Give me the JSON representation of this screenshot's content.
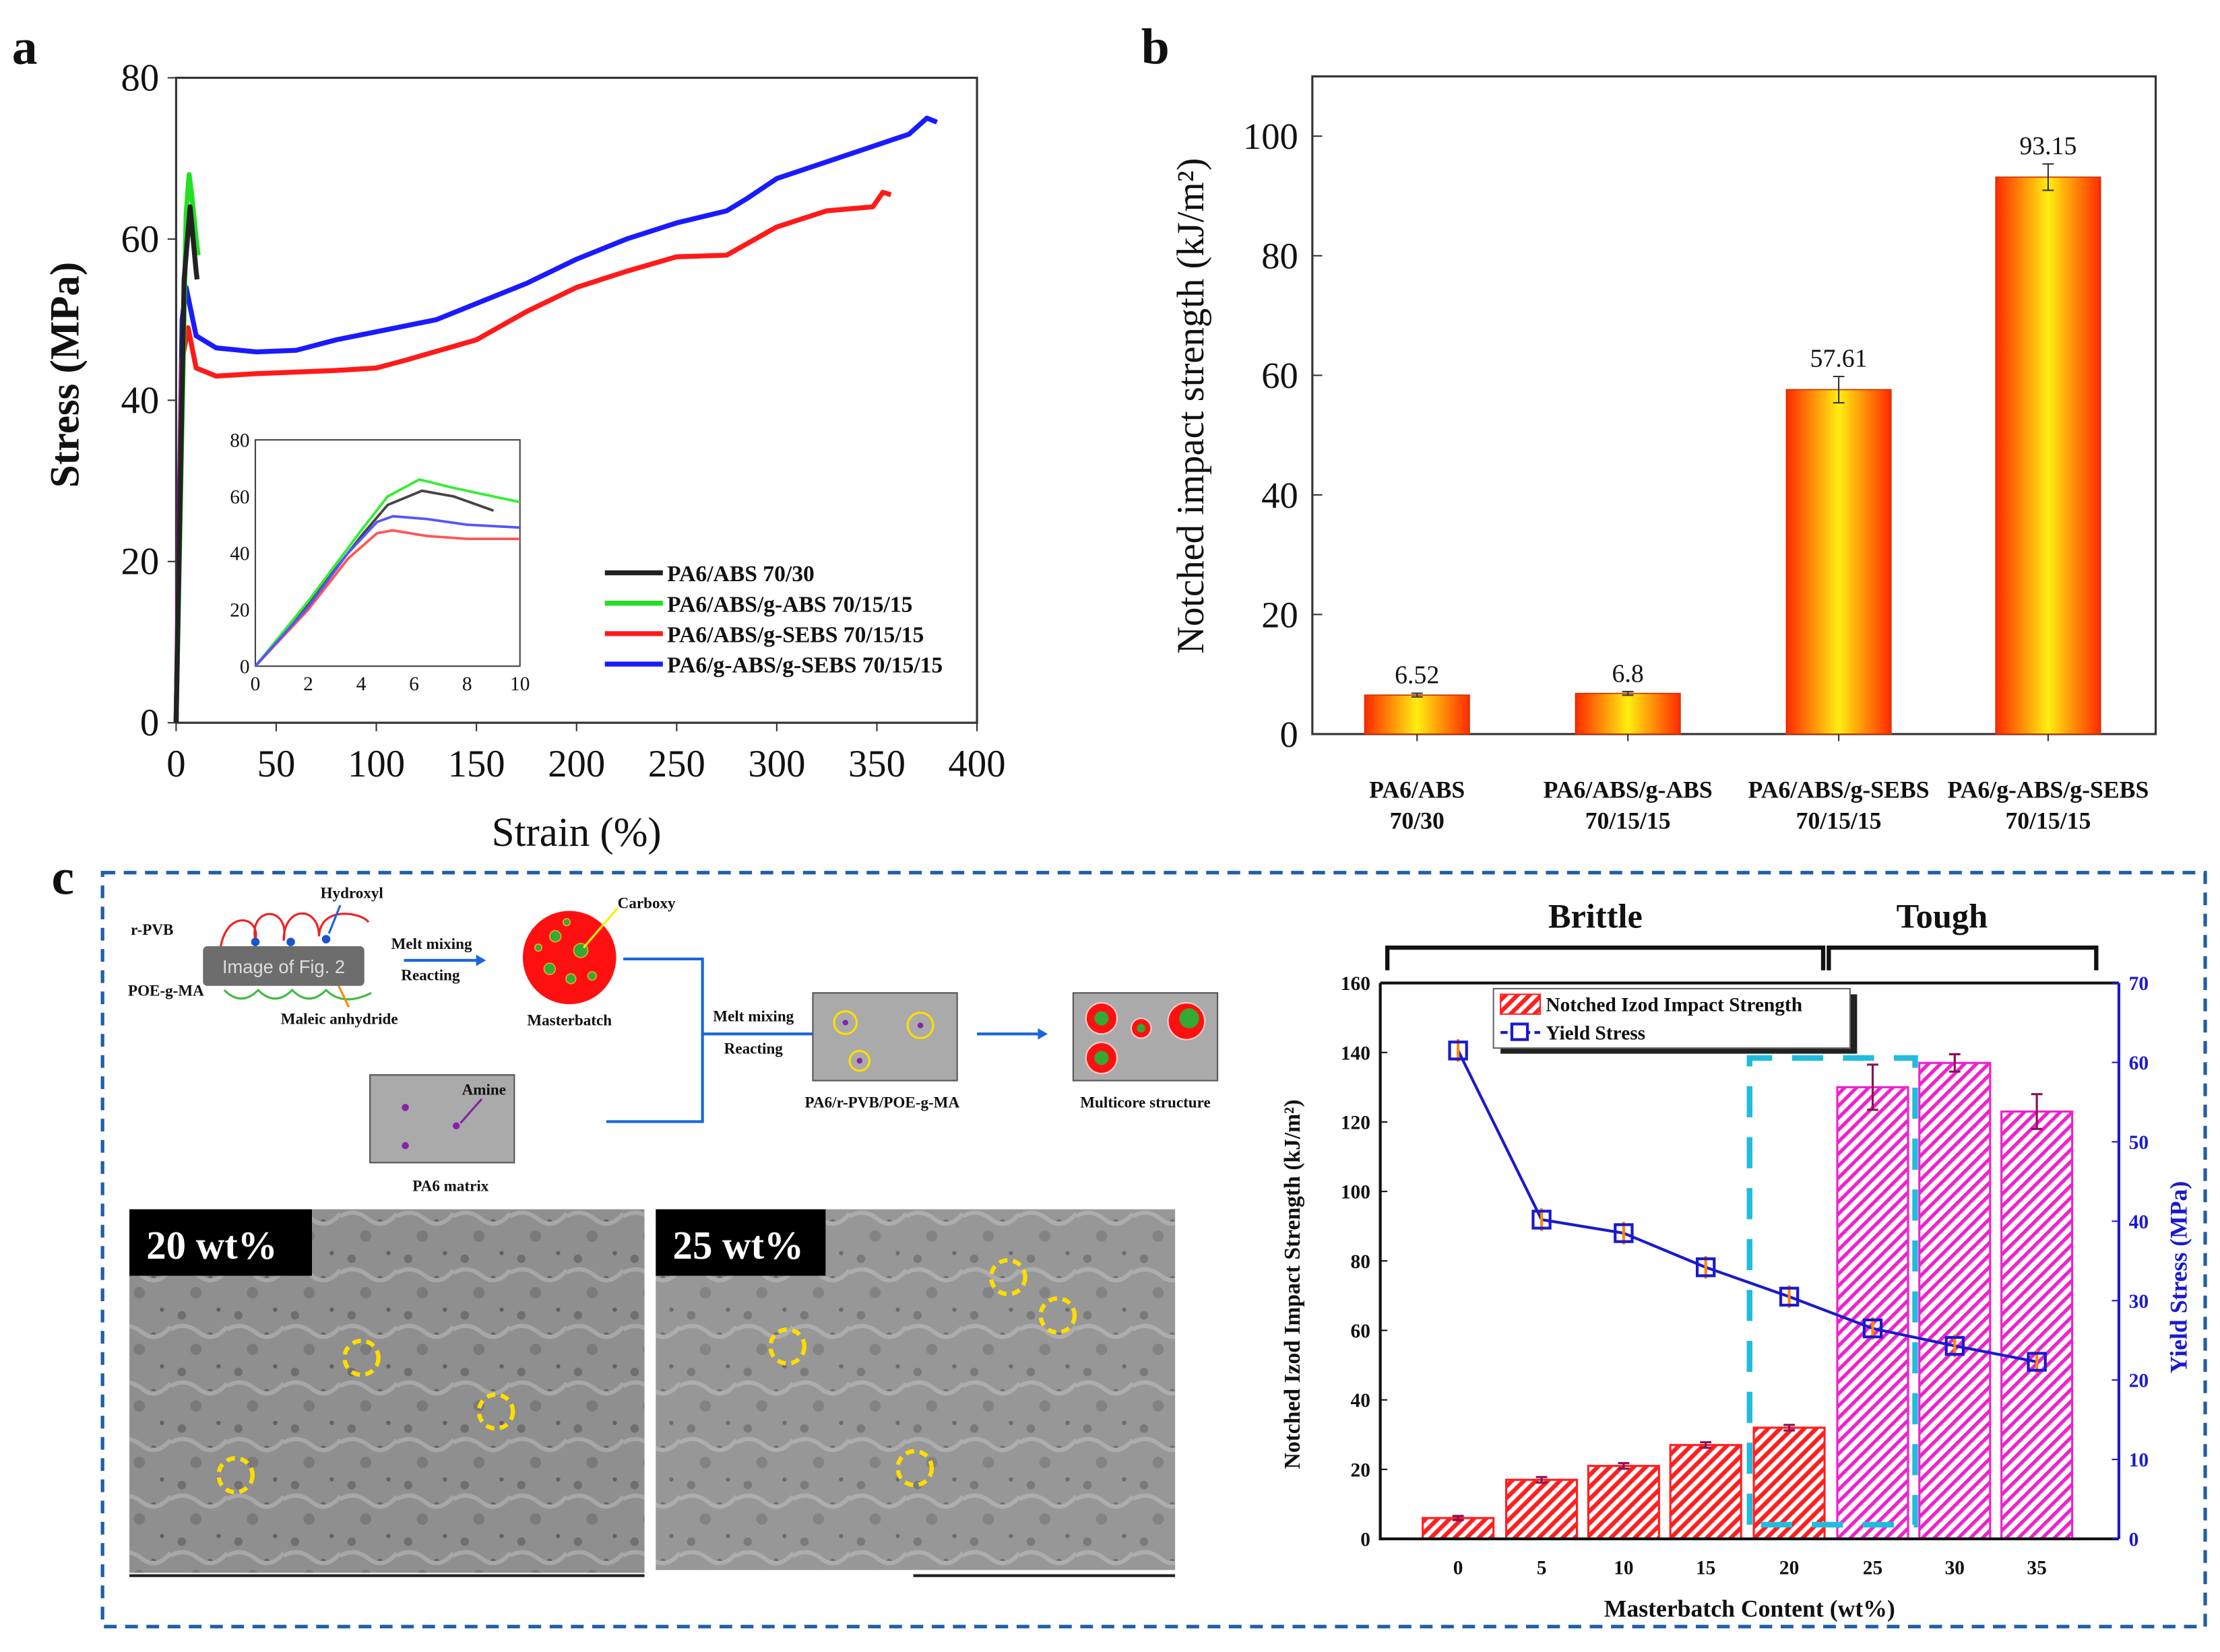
{
  "panel_labels": {
    "a": "a",
    "b": "b",
    "c": "c"
  },
  "chart_data": [
    {
      "id": "a",
      "type": "line",
      "xlabel": "Strain (%)",
      "ylabel": "Stress (MPa)",
      "xlim": [
        0,
        400
      ],
      "ylim": [
        0,
        80
      ],
      "xticks": [
        0,
        50,
        100,
        150,
        200,
        250,
        300,
        350,
        400
      ],
      "yticks": [
        0,
        20,
        40,
        60,
        80
      ],
      "legend_position": "bottom-right",
      "series": [
        {
          "name": "PA6/ABS 70/30",
          "color": "#222222",
          "x": [
            0,
            4,
            7,
            8.5,
            10,
            10.5
          ],
          "y": [
            0,
            55,
            64,
            60,
            56,
            55
          ]
        },
        {
          "name": "PA6/ABS/g-ABS 70/15/15",
          "color": "#22e022",
          "x": [
            0,
            5,
            6.5,
            8,
            10,
            11
          ],
          "y": [
            0,
            63,
            68,
            65,
            60,
            58
          ]
        },
        {
          "name": "PA6/ABS/g-SEBS 70/15/15",
          "color": "#ff1a1a",
          "x": [
            0,
            3,
            6,
            10,
            20,
            40,
            80,
            100,
            115,
            150,
            175,
            200,
            225,
            250,
            275,
            300,
            325,
            348,
            353,
            357
          ],
          "y": [
            0,
            45,
            49,
            44,
            43,
            43.3,
            43.7,
            44,
            45,
            47.5,
            51,
            54,
            56,
            57.8,
            58,
            61.5,
            63.5,
            64,
            65.8,
            65.5
          ]
        },
        {
          "name": "PA6/g-ABS/g-SEBS 70/15/15",
          "color": "#1a1aff",
          "x": [
            0,
            3,
            5,
            10,
            20,
            40,
            60,
            80,
            100,
            130,
            150,
            175,
            200,
            225,
            250,
            275,
            285,
            300,
            330,
            360,
            366,
            375,
            380
          ],
          "y": [
            0,
            50,
            54,
            48,
            46.5,
            46,
            46.2,
            47.5,
            48.5,
            50,
            52,
            54.5,
            57.5,
            60,
            62,
            63.5,
            65,
            67.5,
            70,
            72.5,
            73,
            75,
            74.5
          ]
        }
      ],
      "inset": {
        "xlim": [
          0,
          10
        ],
        "ylim": [
          0,
          80
        ],
        "xticks": [
          0,
          2,
          4,
          6,
          8,
          10
        ],
        "yticks": [
          0,
          20,
          40,
          60,
          80
        ],
        "series": [
          {
            "name": "PA6/ABS 70/30",
            "color": "#444444",
            "x": [
              0,
              2,
              4,
              5,
              6.3,
              7.5,
              9
            ],
            "y": [
              0,
              22,
              46,
              57,
              62,
              60,
              55
            ]
          },
          {
            "name": "PA6/ABS/g-ABS 70/15/15",
            "color": "#33ee33",
            "x": [
              0,
              2,
              4,
              5,
              6.2,
              7.5,
              10
            ],
            "y": [
              0,
              23,
              48,
              60,
              66,
              63,
              58
            ]
          },
          {
            "name": "PA6/ABS/g-SEBS 70/15/15",
            "color": "#ff5555",
            "x": [
              0,
              2,
              3.5,
              4.6,
              5.2,
              6.5,
              8,
              10
            ],
            "y": [
              0,
              20,
              38,
              47,
              48,
              46,
              45,
              45
            ]
          },
          {
            "name": "PA6/g-ABS/g-SEBS 70/15/15",
            "color": "#5555ff",
            "x": [
              0,
              2,
              3.5,
              4.6,
              5.2,
              6.5,
              8,
              10
            ],
            "y": [
              0,
              21,
              40,
              51,
              53,
              52,
              50,
              49
            ]
          }
        ]
      }
    },
    {
      "id": "b",
      "type": "bar",
      "ylabel": "Notched impact strength (kJ/m²)",
      "ylim": [
        0,
        110
      ],
      "yticks": [
        0,
        20,
        40,
        60,
        80,
        100
      ],
      "categories": [
        [
          "PA6/ABS",
          "70/30"
        ],
        [
          "PA6/ABS/g-ABS",
          "70/15/15"
        ],
        [
          "PA6/ABS/g-SEBS",
          "70/15/15"
        ],
        [
          "PA6/g-ABS/g-SEBS",
          "70/15/15"
        ]
      ],
      "values": [
        6.52,
        6.8,
        57.61,
        93.15
      ],
      "value_labels": [
        "6.52",
        "6.8",
        "57.61",
        "93.15"
      ],
      "errors": [
        0.3,
        0.3,
        2.2,
        2.2
      ]
    },
    {
      "id": "c",
      "type": "bar",
      "xlabel": "Masterbatch Content (wt%)",
      "ylabel": "Notched Izod Impact Strength (kJ/m²)",
      "y2label": "Yield Stress (MPa)",
      "ylim": [
        0,
        160
      ],
      "y2lim": [
        0,
        70
      ],
      "yticks": [
        0,
        20,
        40,
        60,
        80,
        100,
        120,
        140,
        160
      ],
      "y2ticks": [
        0,
        10,
        20,
        30,
        40,
        50,
        60,
        70
      ],
      "categories": [
        "0",
        "5",
        "10",
        "15",
        "20",
        "25",
        "30",
        "35"
      ],
      "legend_position": "top-left",
      "regions": [
        "Brittle",
        "Tough"
      ],
      "series": [
        {
          "name": "Notched Izod Impact Strength",
          "type": "bar",
          "values": [
            6,
            17,
            21,
            27,
            32,
            130,
            137,
            123
          ],
          "errors": [
            0.6,
            0.8,
            0.8,
            0.8,
            0.8,
            6.5,
            2.5,
            5
          ],
          "colors": [
            "#ff2020",
            "#ff2020",
            "#ff2020",
            "#ff2020",
            "#ff2020",
            "#ee22cc",
            "#ee22cc",
            "#ee22cc"
          ]
        },
        {
          "name": "Yield Stress",
          "type": "line",
          "axis": "right",
          "color": "#1a1acc",
          "values": [
            61.5,
            40.2,
            38.5,
            34.2,
            30.5,
            26.5,
            24.3,
            22.3
          ]
        }
      ]
    }
  ],
  "scheme": {
    "r_pvb": "r-PVB",
    "hydroxyl": "Hydroxyl",
    "image_placeholder": "Image of Fig. 2",
    "poe_g_ma": "POE-g-MA",
    "maleic_anhydride": "Maleic anhydride",
    "melt_mixing_1": "Melt mixing",
    "reacting_1": "Reacting",
    "carboxy": "Carboxy",
    "masterbatch": "Masterbatch",
    "amine": "Amine",
    "pa6_matrix": "PA6 matrix",
    "melt_mixing_2": "Melt mixing",
    "reacting_2": "Reacting",
    "blend": "PA6/r-PVB/POE-g-MA",
    "multicore": "Multicore structure"
  },
  "sem": [
    {
      "label": "20 wt%"
    },
    {
      "label": "25 wt%"
    }
  ],
  "colors": {
    "frame_dash": "#1f5fa8",
    "cyan_dash": "#22bbdd"
  }
}
